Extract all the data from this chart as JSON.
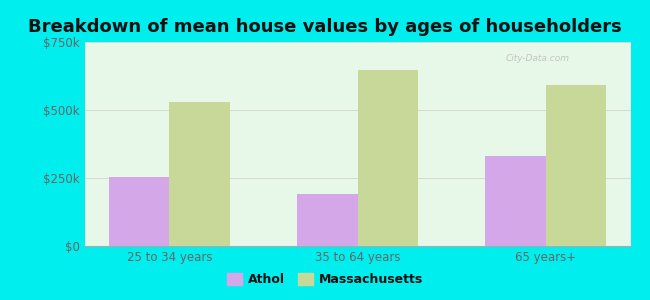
{
  "title": "Breakdown of mean house values by ages of householders",
  "categories": [
    "25 to 34 years",
    "35 to 64 years",
    "65 years+"
  ],
  "athol_values": [
    252000,
    192000,
    332000
  ],
  "mass_values": [
    530000,
    648000,
    592000
  ],
  "ylim": [
    0,
    750000
  ],
  "yticks": [
    0,
    250000,
    500000,
    750000
  ],
  "ytick_labels": [
    "$0",
    "$250k",
    "$500k",
    "$750k"
  ],
  "athol_color": "#d4a8e8",
  "mass_color": "#c8d898",
  "plot_bg_color": "#e8f8e8",
  "outer_background": "#00eeee",
  "legend_athol": "Athol",
  "legend_mass": "Massachusetts",
  "title_fontsize": 13,
  "bar_width": 0.32,
  "watermark": "City-Data.com"
}
